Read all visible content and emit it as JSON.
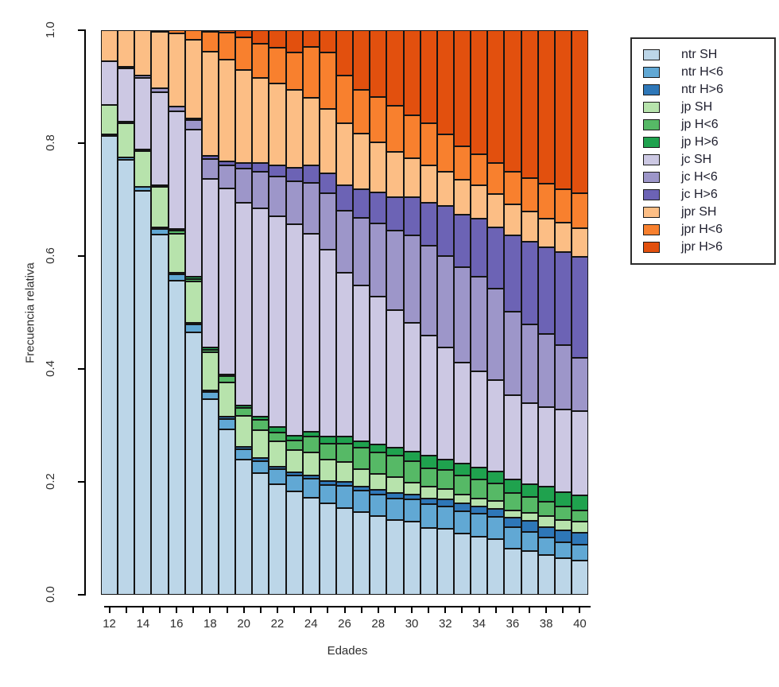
{
  "title": "",
  "y_axis": {
    "label": "Frecuencia relativa",
    "ticks": [
      "0.0",
      "0.2",
      "0.4",
      "0.6",
      "0.8",
      "1.0"
    ],
    "tick_values": [
      0.0,
      0.2,
      0.4,
      0.6,
      0.8,
      1.0
    ]
  },
  "x_axis": {
    "label": "Edades",
    "labeled_ticks": [
      "12",
      "14",
      "16",
      "18",
      "20",
      "22",
      "24",
      "26",
      "28",
      "30",
      "32",
      "34",
      "36",
      "38",
      "40"
    ]
  },
  "colors": {
    "ntr_sh": "#bcd6e8",
    "ntr_hlt6": "#61a8d4",
    "ntr_hgt6": "#2e77b8",
    "jp_sh": "#b7e3ac",
    "jp_hlt6": "#56b966",
    "jp_hgt6": "#1fa24e",
    "jc_sh": "#ccc8e3",
    "jc_hlt6": "#9d96c9",
    "jc_hgt6": "#6c63b5",
    "jpr_sh": "#fcbe85",
    "jpr_hlt6": "#f8802e",
    "jpr_hgt6": "#e2500e",
    "bar_border": "#141414",
    "axis": "#000000",
    "text": "#2e2e2e"
  },
  "chart_data": {
    "type": "bar",
    "stacked": true,
    "normalized": true,
    "title": "",
    "xlabel": "Edades",
    "ylabel": "Frecuencia relativa",
    "ylim": [
      0,
      1
    ],
    "grid": false,
    "legend_position": "top-right-outside",
    "categories": [
      12,
      13,
      14,
      15,
      16,
      17,
      18,
      19,
      20,
      21,
      22,
      23,
      24,
      25,
      26,
      27,
      28,
      29,
      30,
      31,
      32,
      33,
      34,
      35,
      36,
      37,
      38,
      39,
      40
    ],
    "stack_order_note": "series listed bottom-to-top of each bar; legend shows same order top-to-bottom",
    "series": [
      {
        "name": "ntr SH",
        "color": "#bcd6e8",
        "values": [
          0.814,
          0.772,
          0.716,
          0.64,
          0.558,
          0.466,
          0.347,
          0.293,
          0.24,
          0.215,
          0.196,
          0.183,
          0.172,
          0.162,
          0.153,
          0.146,
          0.139,
          0.133,
          0.129,
          0.119,
          0.117,
          0.108,
          0.103,
          0.098,
          0.082,
          0.077,
          0.07,
          0.065,
          0.061
        ]
      },
      {
        "name": "ntr H<6",
        "color": "#61a8d4",
        "values": [
          0.002,
          0.004,
          0.006,
          0.009,
          0.011,
          0.014,
          0.012,
          0.019,
          0.018,
          0.022,
          0.026,
          0.028,
          0.033,
          0.033,
          0.04,
          0.038,
          0.038,
          0.038,
          0.04,
          0.042,
          0.04,
          0.04,
          0.04,
          0.04,
          0.038,
          0.035,
          0.031,
          0.028,
          0.028
        ]
      },
      {
        "name": "ntr H>6",
        "color": "#2e77b8",
        "values": [
          0,
          0,
          0,
          0.001,
          0.001,
          0.002,
          0.002,
          0.003,
          0.004,
          0.005,
          0.005,
          0.006,
          0.007,
          0.007,
          0.007,
          0.007,
          0.009,
          0.009,
          0.009,
          0.009,
          0.012,
          0.014,
          0.014,
          0.014,
          0.016,
          0.019,
          0.019,
          0.021,
          0.021
        ]
      },
      {
        "name": "jp SH",
        "color": "#b7e3ac",
        "values": [
          0.052,
          0.061,
          0.064,
          0.072,
          0.07,
          0.073,
          0.068,
          0.061,
          0.055,
          0.05,
          0.045,
          0.04,
          0.04,
          0.038,
          0.035,
          0.031,
          0.028,
          0.028,
          0.021,
          0.021,
          0.019,
          0.016,
          0.014,
          0.014,
          0.014,
          0.014,
          0.019,
          0.019,
          0.019
        ]
      },
      {
        "name": "jp H<6",
        "color": "#56b966",
        "values": [
          0,
          0.002,
          0.003,
          0.004,
          0.006,
          0.004,
          0.004,
          0.011,
          0.014,
          0.018,
          0.016,
          0.016,
          0.028,
          0.028,
          0.033,
          0.038,
          0.038,
          0.038,
          0.038,
          0.033,
          0.033,
          0.033,
          0.033,
          0.031,
          0.031,
          0.028,
          0.026,
          0.023,
          0.021
        ]
      },
      {
        "name": "jp H>6",
        "color": "#1fa24e",
        "values": [
          0,
          0,
          0,
          0,
          0.001,
          0.004,
          0.004,
          0.003,
          0.004,
          0.005,
          0.009,
          0.009,
          0.009,
          0.012,
          0.012,
          0.012,
          0.014,
          0.014,
          0.016,
          0.023,
          0.019,
          0.021,
          0.021,
          0.021,
          0.023,
          0.023,
          0.026,
          0.026,
          0.026
        ]
      },
      {
        "name": "jc SH",
        "color": "#ccc8e3",
        "values": [
          0.077,
          0.094,
          0.127,
          0.165,
          0.209,
          0.262,
          0.3,
          0.33,
          0.36,
          0.37,
          0.374,
          0.375,
          0.351,
          0.331,
          0.29,
          0.276,
          0.262,
          0.245,
          0.229,
          0.212,
          0.198,
          0.18,
          0.171,
          0.163,
          0.15,
          0.144,
          0.142,
          0.146,
          0.15
        ]
      },
      {
        "name": "jc H<6",
        "color": "#9d96c9",
        "values": [
          0,
          0.002,
          0.004,
          0.007,
          0.008,
          0.016,
          0.035,
          0.04,
          0.06,
          0.065,
          0.07,
          0.075,
          0.09,
          0.1,
          0.11,
          0.12,
          0.13,
          0.14,
          0.155,
          0.16,
          0.162,
          0.168,
          0.167,
          0.162,
          0.148,
          0.139,
          0.129,
          0.115,
          0.094
        ]
      },
      {
        "name": "jc H>6",
        "color": "#6c63b5",
        "values": [
          0,
          0,
          0,
          0,
          0,
          0.002,
          0.005,
          0.008,
          0.01,
          0.015,
          0.02,
          0.025,
          0.03,
          0.035,
          0.045,
          0.05,
          0.055,
          0.06,
          0.068,
          0.075,
          0.089,
          0.094,
          0.103,
          0.108,
          0.134,
          0.146,
          0.153,
          0.164,
          0.178
        ]
      },
      {
        "name": "jpr SH",
        "color": "#fcbe85",
        "values": [
          0.055,
          0.065,
          0.08,
          0.1,
          0.13,
          0.14,
          0.185,
          0.18,
          0.165,
          0.15,
          0.145,
          0.138,
          0.12,
          0.114,
          0.11,
          0.099,
          0.089,
          0.08,
          0.068,
          0.066,
          0.061,
          0.061,
          0.059,
          0.059,
          0.056,
          0.054,
          0.052,
          0.052,
          0.052
        ]
      },
      {
        "name": "jpr H<6",
        "color": "#f8802e",
        "values": [
          0,
          0,
          0,
          0.002,
          0.006,
          0.017,
          0.035,
          0.048,
          0.058,
          0.061,
          0.063,
          0.066,
          0.09,
          0.1,
          0.085,
          0.078,
          0.08,
          0.082,
          0.077,
          0.075,
          0.065,
          0.06,
          0.055,
          0.055,
          0.058,
          0.059,
          0.061,
          0.059,
          0.061
        ]
      },
      {
        "name": "jpr H>6",
        "color": "#e2500e",
        "values": [
          0,
          0,
          0,
          0,
          0,
          0,
          0.003,
          0.004,
          0.012,
          0.024,
          0.031,
          0.039,
          0.03,
          0.04,
          0.08,
          0.105,
          0.118,
          0.133,
          0.15,
          0.165,
          0.185,
          0.205,
          0.22,
          0.235,
          0.25,
          0.262,
          0.272,
          0.282,
          0.289
        ]
      }
    ]
  },
  "legend": {
    "entries": [
      "ntr SH",
      "ntr H<6",
      "ntr H>6",
      "jp SH",
      "jp H<6",
      "jp H>6",
      "jc SH",
      "jc H<6",
      "jc H>6",
      "jpr SH",
      "jpr H<6",
      "jpr H>6"
    ]
  }
}
